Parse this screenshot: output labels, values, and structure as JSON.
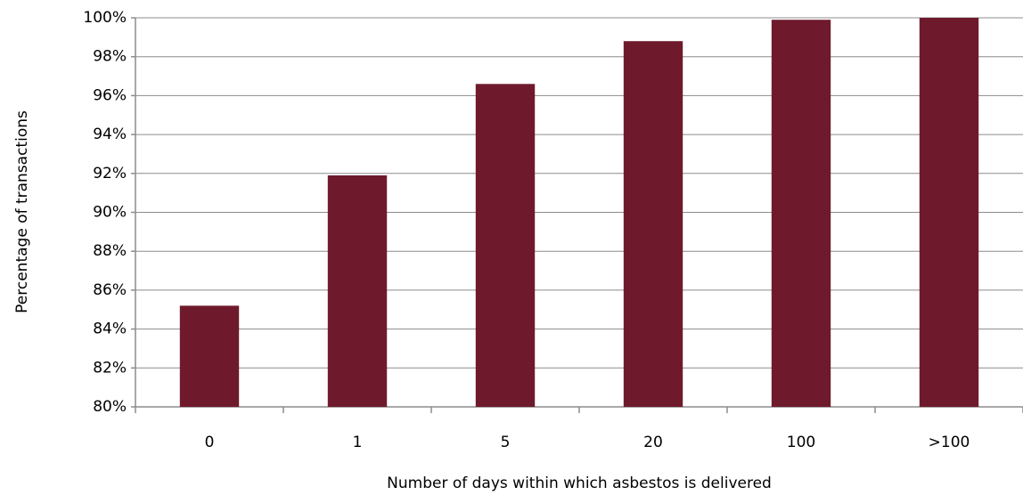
{
  "chart_data": {
    "type": "bar",
    "x_label": "Number  of days within which asbestos is delivered",
    "y_label": "Percentage of transactions",
    "categories": [
      "0",
      "1",
      "5",
      "20",
      "100",
      ">100"
    ],
    "values": [
      85.2,
      91.9,
      96.6,
      98.8,
      99.9,
      100
    ],
    "color": "#6f1a2c",
    "ylim": [
      80,
      100
    ],
    "yticks": [
      {
        "value": 80,
        "label": "80%"
      },
      {
        "value": 82,
        "label": "82%"
      },
      {
        "value": 84,
        "label": "84%"
      },
      {
        "value": 86,
        "label": "86%"
      },
      {
        "value": 88,
        "label": "88%"
      },
      {
        "value": 90,
        "label": "90%"
      },
      {
        "value": 92,
        "label": "92%"
      },
      {
        "value": 94,
        "label": "94%"
      },
      {
        "value": 96,
        "label": "96%"
      },
      {
        "value": 98,
        "label": "98%"
      },
      {
        "value": 100,
        "label": "100%"
      }
    ],
    "grid": true
  }
}
